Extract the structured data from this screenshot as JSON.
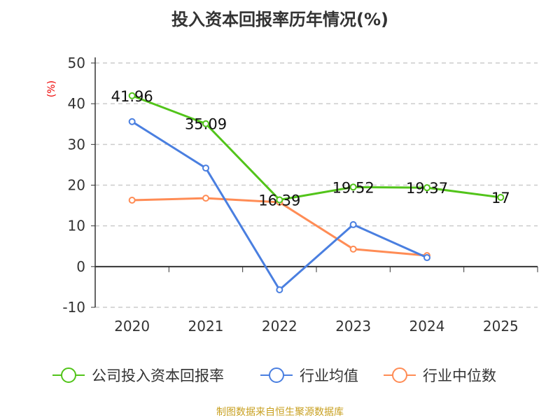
{
  "title": "投入资本回报率历年情况(%)",
  "footer": "制图数据来自恒生聚源数据库",
  "chart_data": {
    "type": "line",
    "title": "投入资本回报率历年情况(%)",
    "ylabel": "(%)",
    "categories": [
      "2020",
      "2021",
      "2022",
      "2023",
      "2024",
      "2025"
    ],
    "ylim": [
      -10,
      50
    ],
    "yticks": [
      -10,
      0,
      10,
      20,
      30,
      40,
      50
    ],
    "grid": true,
    "legend_position": "bottom",
    "series": [
      {
        "name": "公司投入资本回报率",
        "color": "#52c41a",
        "values": [
          41.96,
          35.09,
          16.39,
          19.52,
          19.37,
          17
        ],
        "labels": [
          "41.96",
          "35.09",
          "16.39",
          "19.52",
          "19.37",
          "17"
        ]
      },
      {
        "name": "行业均值",
        "color": "#4a7fe0",
        "values": [
          35.6,
          24.2,
          -5.7,
          10.3,
          2.2,
          null
        ]
      },
      {
        "name": "行业中位数",
        "color": "#ff8c55",
        "values": [
          16.3,
          16.8,
          15.8,
          4.3,
          2.7,
          null
        ]
      }
    ]
  }
}
